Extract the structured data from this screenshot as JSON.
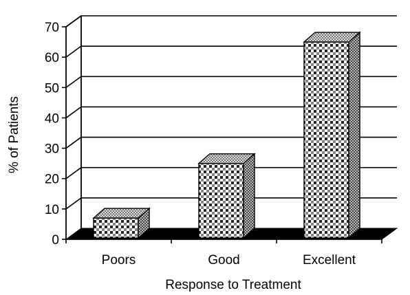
{
  "chart_data": {
    "type": "bar",
    "style": "3d-patterned",
    "title": "",
    "xlabel": "Response to Treatment",
    "ylabel": "% of Patients",
    "categories": [
      "Poors",
      "Good",
      "Excellent"
    ],
    "values": [
      7,
      25,
      65
    ],
    "ylim": [
      0,
      70
    ],
    "yticks": [
      "0",
      "10",
      "20",
      "30",
      "40",
      "50",
      "60",
      "70"
    ],
    "grid": true,
    "legend": "none",
    "colors": {
      "floor": "#000000",
      "bar_light": "#ffffff",
      "bar_dark": "#333333",
      "background": "#ffffff"
    }
  }
}
